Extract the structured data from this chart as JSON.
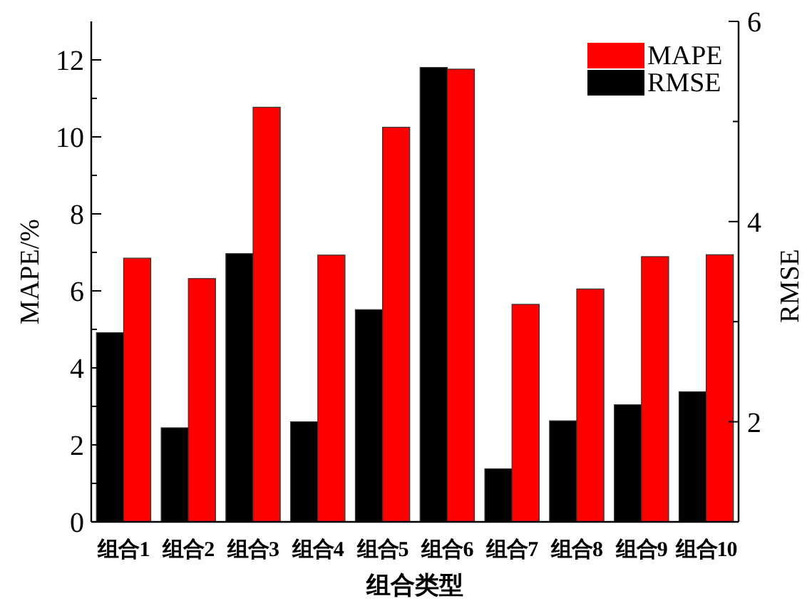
{
  "chart_data": {
    "type": "bar",
    "xlabel": "组合类型",
    "ylabel": "MAPE/%",
    "y2label": "RMSE",
    "categories": [
      "组合1",
      "组合2",
      "组合3",
      "组合4",
      "组合5",
      "组合6",
      "组合7",
      "组合8",
      "组合9",
      "组合10"
    ],
    "series": [
      {
        "name": "RMSE",
        "color": "#000000",
        "axis": "y2",
        "values": [
          2.89,
          1.94,
          3.68,
          2.0,
          3.12,
          5.54,
          1.53,
          2.01,
          2.17,
          2.3
        ]
      },
      {
        "name": "MAPE",
        "color": "#ff0000",
        "values": [
          6.85,
          6.32,
          10.77,
          6.93,
          10.25,
          11.76,
          5.65,
          6.05,
          6.89,
          6.94
        ]
      }
    ],
    "ylim": [
      0,
      13
    ],
    "yticks": [
      0,
      {
        "value": 1,
        "label": null
      },
      2,
      {
        "value": 3,
        "label": null
      },
      4,
      {
        "value": 5,
        "label": null
      },
      6,
      {
        "value": 7,
        "label": null
      },
      8,
      {
        "value": 9,
        "label": null
      },
      10,
      {
        "value": 11,
        "label": null
      },
      12
    ],
    "y2lim": [
      1,
      6
    ],
    "y2ticks": [
      {
        "value": 1,
        "label": null
      },
      2,
      {
        "value": 3,
        "label": null
      },
      4,
      {
        "value": 5,
        "label": null
      },
      6
    ],
    "legend": "top right"
  }
}
